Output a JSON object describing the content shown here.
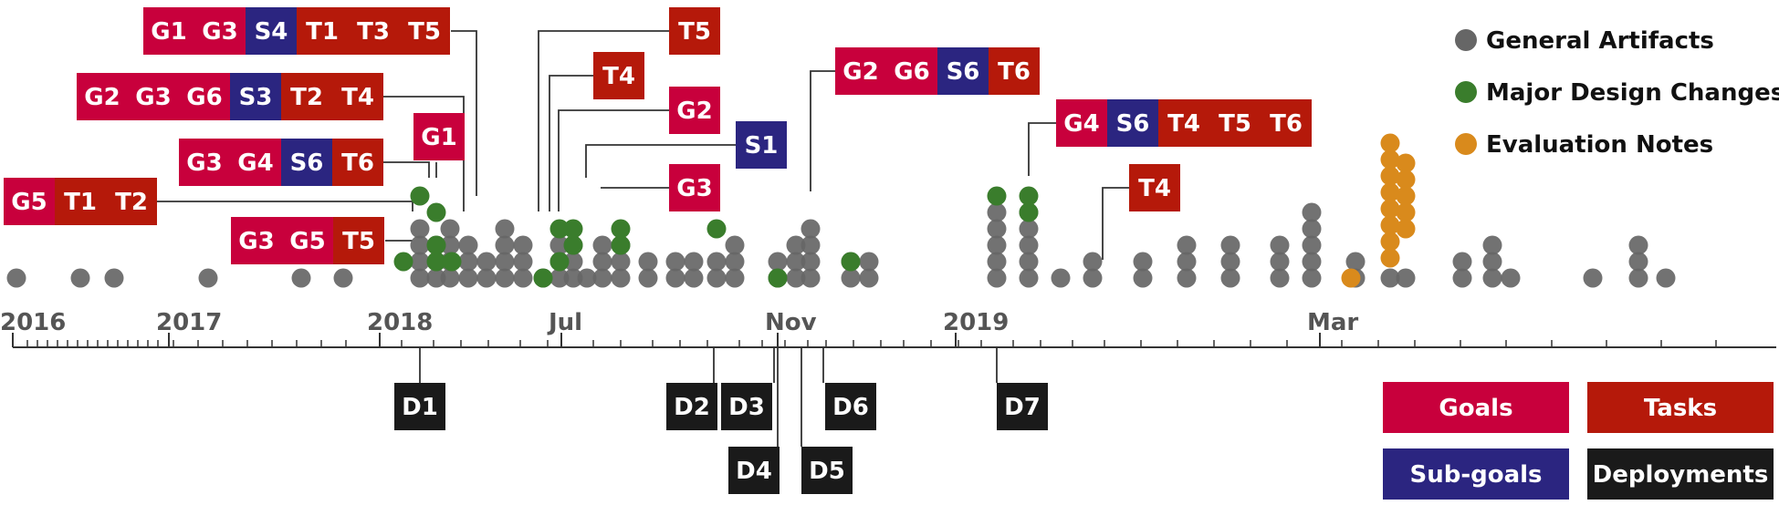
{
  "chart_data": {
    "type": "scatter",
    "title": "",
    "subtitle": "",
    "xlabel": "",
    "ylabel": "",
    "grid": false,
    "legend": {
      "placement": "top-right",
      "items": [
        {
          "name": "General Artifacts",
          "color": "#666666"
        },
        {
          "name": "Major Design Changes",
          "color": "#3a7d2c"
        },
        {
          "name": "Evaluation Notes",
          "color": "#d98a1c"
        }
      ]
    },
    "category_legend": {
      "placement": "bottom-right",
      "items": [
        {
          "name": "Goals",
          "color": "#c8003c"
        },
        {
          "name": "Tasks",
          "color": "#b5190a"
        },
        {
          "name": "Sub-goals",
          "color": "#2b2580"
        },
        {
          "name": "Deployments",
          "color": "#1a1a1a"
        }
      ]
    },
    "colors": {
      "Goals": "#c8003c",
      "Tasks": "#b5190a",
      "Sub-goals": "#2b2580",
      "Deployments": "#1a1a1a",
      "General Artifacts": "#666666",
      "Major Design Changes": "#3a7d2c",
      "Evaluation Notes": "#d98a1c",
      "axis": "#333333",
      "connector": "#333333"
    },
    "x_axis": {
      "type": "time",
      "tick_labels": [
        {
          "label": "2016",
          "x": "2016-01"
        },
        {
          "label": "2017",
          "x": "2017-01"
        },
        {
          "label": "2018",
          "x": "2018-01"
        },
        {
          "label": "Jul",
          "x": "2018-07"
        },
        {
          "label": "Nov",
          "x": "2018-11"
        },
        {
          "label": "2019",
          "x": "2019-01"
        },
        {
          "label": "Mar",
          "x": "2019-03"
        }
      ]
    },
    "series": [
      {
        "name": "General Artifacts",
        "points": [
          {
            "x": "2016-01",
            "count": 1
          },
          {
            "x": "2016-06",
            "count": 1
          },
          {
            "x": "2016-09",
            "count": 1
          },
          {
            "x": "2017-04",
            "count": 1
          },
          {
            "x": "2017-10",
            "count": 1
          },
          {
            "x": "2017-12",
            "count": 1
          },
          {
            "x": "2018-02",
            "count": 4
          },
          {
            "x": "2018-03",
            "count": 3
          },
          {
            "x": "2018-03b",
            "count": 4
          },
          {
            "x": "2018-04",
            "count": 3
          },
          {
            "x": "2018-04b",
            "count": 2
          },
          {
            "x": "2018-05",
            "count": 4
          },
          {
            "x": "2018-05b",
            "count": 3
          },
          {
            "x": "2018-06",
            "count": 1
          },
          {
            "x": "2018-06b",
            "count": 3
          },
          {
            "x": "2018-07",
            "count": 3
          },
          {
            "x": "2018-07b",
            "count": 1
          },
          {
            "x": "2018-07c",
            "count": 3
          },
          {
            "x": "2018-08",
            "count": 3
          },
          {
            "x": "2018-08b",
            "count": 2
          },
          {
            "x": "2018-09",
            "count": 2
          },
          {
            "x": "2018-09b",
            "count": 2
          },
          {
            "x": "2018-10",
            "count": 2
          },
          {
            "x": "2018-10b",
            "count": 3
          },
          {
            "x": "2018-11",
            "count": 2
          },
          {
            "x": "2018-11b",
            "count": 3
          },
          {
            "x": "2018-11c",
            "count": 4
          },
          {
            "x": "2018-12",
            "count": 2
          },
          {
            "x": "2018-12b",
            "count": 2
          },
          {
            "x": "2019-01",
            "count": 5
          },
          {
            "x": "2019-01b",
            "count": 5
          },
          {
            "x": "2019-02",
            "count": 1
          },
          {
            "x": "2019-02b",
            "count": 2
          },
          {
            "x": "2019-02c",
            "count": 2
          },
          {
            "x": "2019-02d",
            "count": 3
          },
          {
            "x": "2019-03",
            "count": 3
          },
          {
            "x": "2019-03b",
            "count": 3
          },
          {
            "x": "2019-03c",
            "count": 5
          },
          {
            "x": "2019-03d",
            "count": 2
          },
          {
            "x": "2019-04",
            "count": 1
          },
          {
            "x": "2019-04b",
            "count": 1
          },
          {
            "x": "2019-05",
            "count": 2
          },
          {
            "x": "2019-05b",
            "count": 3
          },
          {
            "x": "2019-05c",
            "count": 1
          },
          {
            "x": "2019-06",
            "count": 1
          },
          {
            "x": "2019-06b",
            "count": 3
          },
          {
            "x": "2019-06c",
            "count": 1
          }
        ]
      },
      {
        "name": "Major Design Changes",
        "points": [
          {
            "x": "2018-02",
            "count": 2
          },
          {
            "x": "2018-03",
            "count": 3
          },
          {
            "x": "2018-04",
            "count": 1
          },
          {
            "x": "2018-06",
            "count": 1
          },
          {
            "x": "2018-06b",
            "count": 2
          },
          {
            "x": "2018-07",
            "count": 2
          },
          {
            "x": "2018-08",
            "count": 2
          },
          {
            "x": "2018-10",
            "count": 1
          },
          {
            "x": "2018-11",
            "count": 1
          },
          {
            "x": "2018-12",
            "count": 1
          },
          {
            "x": "2019-01",
            "count": 1
          },
          {
            "x": "2019-01b",
            "count": 2
          }
        ]
      },
      {
        "name": "Evaluation Notes",
        "points": [
          {
            "x": "2019-03",
            "count": 1
          },
          {
            "x": "2019-04",
            "count": 8
          },
          {
            "x": "2019-04b",
            "count": 5
          }
        ]
      }
    ],
    "annotations_above": [
      {
        "labels": [
          "G1",
          "G3",
          "S4",
          "T1",
          "T3",
          "T5"
        ],
        "x": "2018-05"
      },
      {
        "labels": [
          "G2",
          "G3",
          "G6",
          "S3",
          "T2",
          "T4"
        ],
        "x": "2018-04"
      },
      {
        "labels": [
          "G3",
          "G4",
          "S6",
          "T6"
        ],
        "x": "2018-03"
      },
      {
        "labels": [
          "G1"
        ],
        "x": "2018-03"
      },
      {
        "labels": [
          "G5",
          "T1",
          "T2"
        ],
        "x": "2018-02"
      },
      {
        "labels": [
          "G3",
          "G5",
          "T5"
        ],
        "x": "2018-02"
      },
      {
        "labels": [
          "T5"
        ],
        "x": "2018-07"
      },
      {
        "labels": [
          "T4"
        ],
        "x": "2018-07"
      },
      {
        "labels": [
          "G2"
        ],
        "x": "2018-07"
      },
      {
        "labels": [
          "S1"
        ],
        "x": "2018-08"
      },
      {
        "labels": [
          "G3"
        ],
        "x": "2018-08"
      },
      {
        "labels": [
          "G2",
          "G6",
          "S6",
          "T6"
        ],
        "x": "2018-11"
      },
      {
        "labels": [
          "G4",
          "S6",
          "T4",
          "T5",
          "T6"
        ],
        "x": "2019-01"
      },
      {
        "labels": [
          "T4"
        ],
        "x": "2019-02"
      }
    ],
    "deployments": [
      {
        "label": "D1",
        "x": "2018-03"
      },
      {
        "label": "D2",
        "x": "2018-10"
      },
      {
        "label": "D3",
        "x": "2018-11"
      },
      {
        "label": "D4",
        "x": "2018-11"
      },
      {
        "label": "D5",
        "x": "2018-11"
      },
      {
        "label": "D6",
        "x": "2018-12"
      },
      {
        "label": "D7",
        "x": "2019-01"
      }
    ]
  }
}
